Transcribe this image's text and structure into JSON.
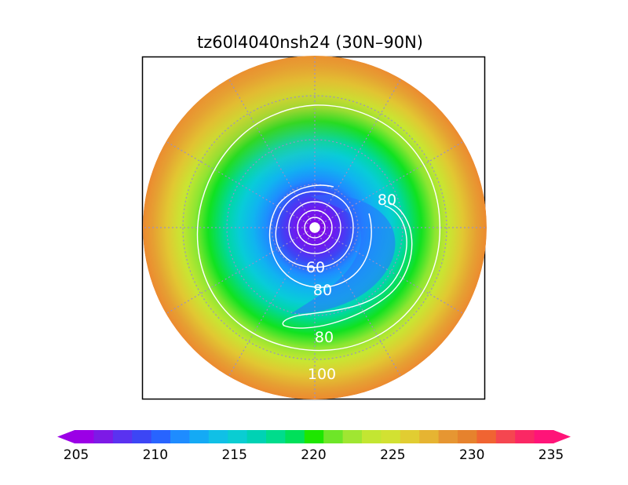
{
  "title": "tz60l4040nsh24 (30N–90N)",
  "projection": "north-polar-stereographic",
  "colorbar": {
    "min": 205,
    "max": 235,
    "tick_labels": [
      "205",
      "210",
      "215",
      "220",
      "225",
      "230",
      "235"
    ],
    "colors": [
      "#9b00e6",
      "#7d1ae6",
      "#5a32f0",
      "#3c46f5",
      "#2864ff",
      "#1e8cff",
      "#14aaf5",
      "#10c0e6",
      "#0acdd2",
      "#00d2b4",
      "#00dc8c",
      "#00e05a",
      "#1ee600",
      "#6ee628",
      "#a0e632",
      "#c3e632",
      "#d2e132",
      "#e1cd32",
      "#e6b432",
      "#e69632",
      "#e6822d",
      "#f06432",
      "#f54650",
      "#fa2864",
      "#ff1478"
    ]
  },
  "contour_labels": [
    {
      "text": "80"
    },
    {
      "text": "60"
    },
    {
      "text": "80"
    },
    {
      "text": "80"
    },
    {
      "text": "100"
    }
  ]
}
